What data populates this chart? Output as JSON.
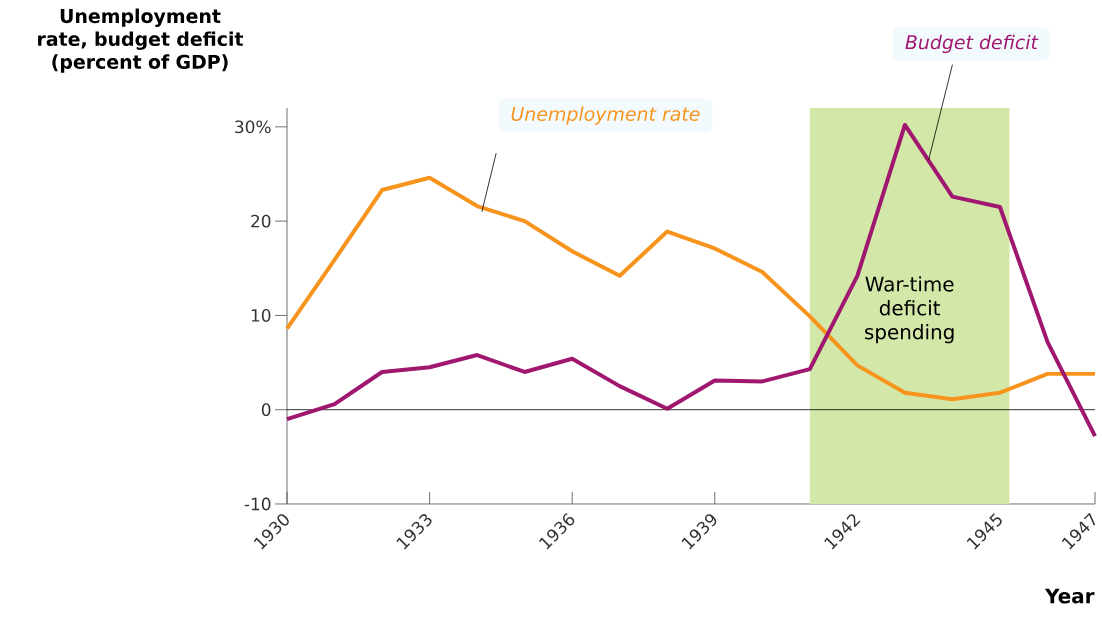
{
  "chart_data": {
    "type": "line",
    "ylabel": "Unemployment rate, budget deficit (percent of GDP)",
    "xlabel": "Year",
    "x": [
      1930,
      1931,
      1932,
      1933,
      1934,
      1935,
      1936,
      1937,
      1938,
      1939,
      1940,
      1941,
      1942,
      1943,
      1944,
      1945,
      1946,
      1947
    ],
    "series": [
      {
        "name": "Unemployment rate",
        "color": "#f7941d",
        "values": [
          8.6,
          15.9,
          23.3,
          24.6,
          21.6,
          20.0,
          16.8,
          14.2,
          18.9,
          17.1,
          14.6,
          9.9,
          4.7,
          1.8,
          1.1,
          1.8,
          3.8,
          3.8
        ]
      },
      {
        "name": "Budget deficit",
        "color": "#a0176f",
        "values": [
          -1.0,
          0.6,
          4.0,
          4.5,
          5.8,
          4.0,
          5.4,
          2.5,
          0.1,
          3.1,
          3.0,
          4.3,
          14.2,
          30.2,
          22.6,
          21.5,
          7.2,
          -2.8
        ]
      }
    ],
    "xlim": [
      1930,
      1947
    ],
    "ylim": [
      -10,
      32
    ],
    "xticks": [
      1930,
      1933,
      1936,
      1939,
      1942,
      1945,
      1947
    ],
    "yticks": [
      -10,
      0,
      10,
      20,
      {
        "value": 30,
        "label": "30%"
      }
    ],
    "ref_lines": [
      {
        "axis": "y",
        "value": 0,
        "color": "#000000"
      }
    ],
    "bands": [
      {
        "axis": "x",
        "from": 1941,
        "to": 1945.2,
        "label": "War-time deficit spending",
        "color": "#d3e8a8"
      }
    ],
    "legend": false,
    "line_style": "solid"
  }
}
